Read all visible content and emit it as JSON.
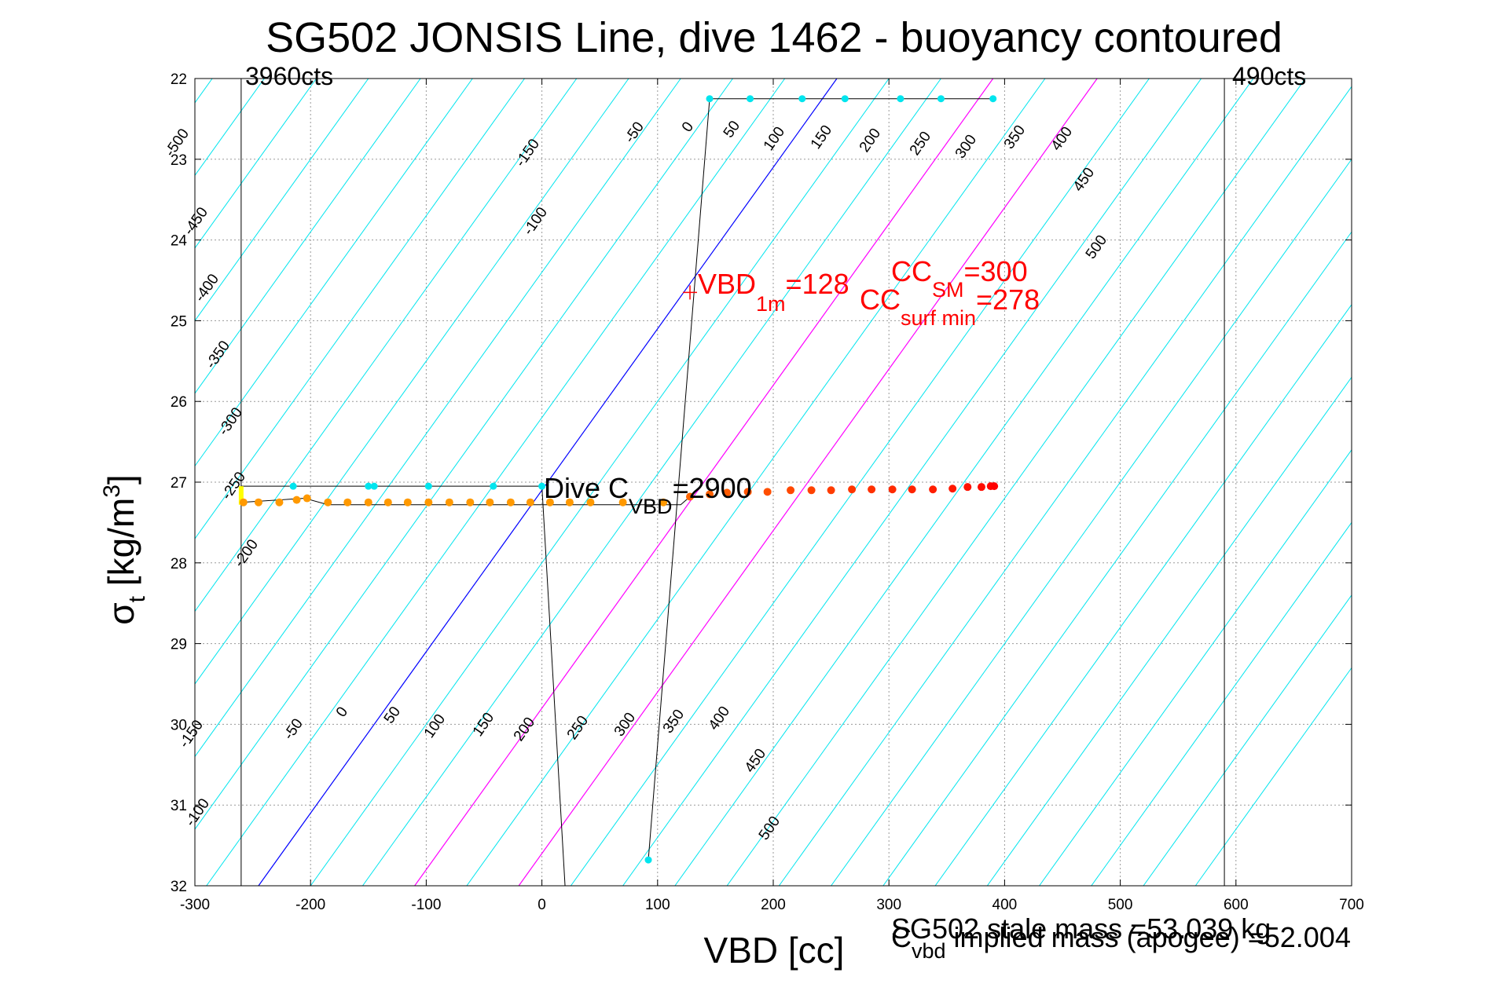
{
  "title": "SG502 JONSIS Line, dive 1462 - buoyancy contoured",
  "xlabel": "VBD [cc]",
  "ylabel": {
    "sigma": "σ",
    "sub": "t",
    "units_pre": " [kg/m",
    "units_sup": "3",
    "units_post": "]"
  },
  "left_counts": "3960cts",
  "right_counts": "490cts",
  "annotations": {
    "vbd1m": {
      "main": "VBD",
      "sub": "1m",
      "rest": "=128"
    },
    "cc_sm": {
      "main": "CC",
      "sub": "SM",
      "rest": "=300"
    },
    "cc_surf": {
      "main": "CC",
      "sub": "surf min",
      "rest": "=278"
    },
    "dive_c": {
      "main": "Dive C",
      "sub": "VBD",
      "rest": "=2900"
    }
  },
  "footer": {
    "stale": "SG502 stale mass =53.039 kg",
    "implied_main": "C",
    "implied_sub": "vbd",
    "implied_rest": " implied mass (apogee) =52.004"
  },
  "colors": {
    "contour": "#00e5ee",
    "zero_line": "#0000ff",
    "magenta": "#ff00ff",
    "grid": "#9a9a9a",
    "dive_points": "#00e5ee",
    "climb_orange": "#ff9900",
    "climb_red": "#ff2200",
    "highlight": "#ffff00"
  },
  "chart_data": {
    "type": "scatter",
    "xlim": [
      -300,
      700
    ],
    "ylim": [
      22,
      32
    ],
    "y_reversed": true,
    "grid": true,
    "xticks": [
      "-300",
      "-200",
      "-100",
      "0",
      "100",
      "200",
      "300",
      "400",
      "500",
      "600",
      "700"
    ],
    "yticks": [
      "22",
      "23",
      "24",
      "25",
      "26",
      "27",
      "28",
      "29",
      "30",
      "31",
      "32"
    ],
    "vbd_limits": [
      -260,
      590
    ],
    "contour_levels_upper": [
      "-500",
      "-450",
      "-400",
      "-350",
      "-300",
      "-250",
      "-200",
      "-150",
      "-100",
      "-50",
      "0",
      "50",
      "100",
      "150",
      "200",
      "250",
      "300",
      "350",
      "400",
      "450",
      "500"
    ],
    "contour_levels_lower": [
      "-150",
      "-100",
      "-50",
      "0",
      "50",
      "100",
      "150",
      "200",
      "250",
      "300",
      "350",
      "400",
      "450",
      "500"
    ],
    "special_contours": {
      "zero": "0",
      "magenta": [
        "150",
        "250"
      ]
    },
    "dive_points": [
      {
        "x": 145,
        "y": 22.25
      },
      {
        "x": 180,
        "y": 22.25
      },
      {
        "x": 225,
        "y": 22.25
      },
      {
        "x": 262,
        "y": 22.25
      },
      {
        "x": 310,
        "y": 22.25
      },
      {
        "x": 345,
        "y": 22.25
      },
      {
        "x": 390,
        "y": 22.25
      },
      {
        "x": -215,
        "y": 27.05
      },
      {
        "x": -150,
        "y": 27.05
      },
      {
        "x": -145,
        "y": 27.05
      },
      {
        "x": -98,
        "y": 27.05
      },
      {
        "x": -42,
        "y": 27.05
      },
      {
        "x": 0,
        "y": 27.05
      },
      {
        "x": 92,
        "y": 31.68
      }
    ],
    "climb_points_orange": [
      {
        "x": -258,
        "y": 27.25
      },
      {
        "x": -245,
        "y": 27.25
      },
      {
        "x": -227,
        "y": 27.25
      },
      {
        "x": -212,
        "y": 27.22
      },
      {
        "x": -203,
        "y": 27.2
      },
      {
        "x": -185,
        "y": 27.25
      },
      {
        "x": -168,
        "y": 27.25
      },
      {
        "x": -150,
        "y": 27.25
      },
      {
        "x": -133,
        "y": 27.25
      },
      {
        "x": -116,
        "y": 27.25
      },
      {
        "x": -98,
        "y": 27.25
      },
      {
        "x": -80,
        "y": 27.25
      },
      {
        "x": -62,
        "y": 27.25
      },
      {
        "x": -45,
        "y": 27.25
      },
      {
        "x": -27,
        "y": 27.25
      },
      {
        "x": -10,
        "y": 27.25
      },
      {
        "x": 7,
        "y": 27.25
      },
      {
        "x": 24,
        "y": 27.25
      },
      {
        "x": 42,
        "y": 27.25
      },
      {
        "x": 70,
        "y": 27.25
      },
      {
        "x": 105,
        "y": 27.25
      }
    ],
    "climb_points_red": [
      {
        "x": 128,
        "y": 27.18
      },
      {
        "x": 145,
        "y": 27.15
      },
      {
        "x": 160,
        "y": 27.13
      },
      {
        "x": 178,
        "y": 27.12
      },
      {
        "x": 195,
        "y": 27.12
      },
      {
        "x": 215,
        "y": 27.1
      },
      {
        "x": 233,
        "y": 27.1
      },
      {
        "x": 250,
        "y": 27.1
      },
      {
        "x": 268,
        "y": 27.09
      },
      {
        "x": 285,
        "y": 27.09
      },
      {
        "x": 303,
        "y": 27.09
      },
      {
        "x": 320,
        "y": 27.09
      },
      {
        "x": 338,
        "y": 27.09
      },
      {
        "x": 355,
        "y": 27.08
      },
      {
        "x": 368,
        "y": 27.06
      },
      {
        "x": 380,
        "y": 27.06
      },
      {
        "x": 388,
        "y": 27.05
      },
      {
        "x": 391,
        "y": 27.05
      }
    ],
    "vbd1m_marker": {
      "x": 128,
      "y": 24.65
    }
  }
}
